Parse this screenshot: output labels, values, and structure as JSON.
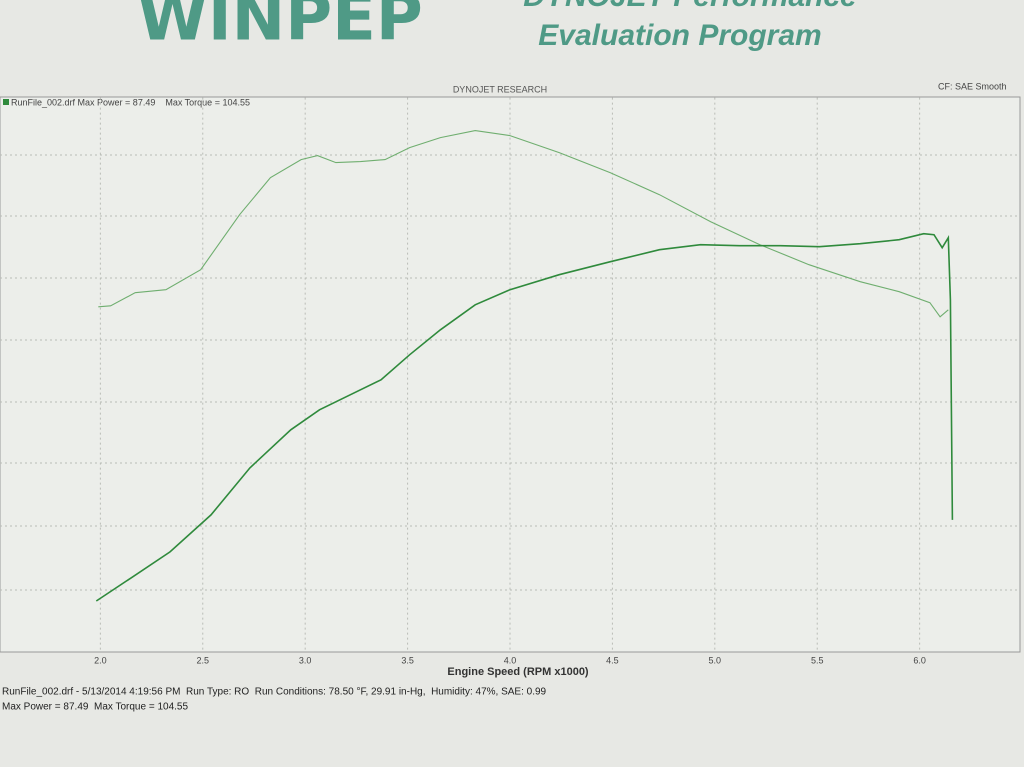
{
  "logo": "WINPEP",
  "program_heading": "DYNOJET Performance",
  "program_subtitle": "Evaluation Program",
  "chart_data": {
    "type": "line",
    "title": "DYNOJET RESEARCH",
    "corner_note": "CF: SAE Smooth",
    "legend_text": "RunFile_002.drf Max Power = 87.49    Max Torque = 104.55",
    "x_label": "Engine Speed (RPM x1000)",
    "xlim": [
      1.51,
      6.49
    ],
    "ylim": [
      0,
      110.4
    ],
    "xticks": [
      {
        "value": 2,
        "label": "2.0"
      },
      2.5,
      {
        "value": 3,
        "label": "3.0"
      },
      3.5,
      {
        "value": 4,
        "label": "4.0"
      },
      4.5,
      {
        "value": 5,
        "label": "5.0"
      },
      5.5,
      {
        "value": 6,
        "label": "6.0"
      }
    ],
    "grid": true,
    "series": [
      {
        "color": "#6fae6f",
        "x": [
          1.99,
          2.05,
          2.17,
          2.32,
          2.49,
          2.68,
          2.83,
          2.98,
          3.06,
          3.15,
          3.27,
          3.39,
          3.51,
          3.66,
          3.83,
          4.0,
          4.24,
          4.49,
          4.73,
          4.98,
          5.22,
          5.46,
          5.71,
          5.9,
          6.05,
          6.1,
          6.14
        ],
        "values": [
          68.6,
          68.8,
          71.4,
          72,
          76,
          87,
          94.4,
          98,
          98.8,
          97.4,
          97.6,
          98,
          100.4,
          102.4,
          103.8,
          102.8,
          99.4,
          95.4,
          91,
          85.6,
          81,
          77,
          73.6,
          71.6,
          69.4,
          66.6,
          68
        ]
      },
      {
        "color": "#2f8a3c",
        "x": [
          1.98,
          2.15,
          2.34,
          2.54,
          2.73,
          2.93,
          3.07,
          3.22,
          3.37,
          3.51,
          3.66,
          3.83,
          4.0,
          4.24,
          4.49,
          4.73,
          4.93,
          5.12,
          5.32,
          5.51,
          5.71,
          5.9,
          6.02,
          6.07,
          6.11,
          6.14,
          6.15,
          6.16
        ],
        "values": [
          9.8,
          14.4,
          19.6,
          27,
          36.4,
          44,
          48,
          51,
          54,
          59,
          64,
          69,
          72,
          75,
          77.6,
          80,
          81,
          80.8,
          80.8,
          80.6,
          81.2,
          82,
          83.2,
          83,
          80.4,
          82.4,
          70,
          26
        ]
      }
    ]
  },
  "footer": {
    "line1": "RunFile_002.drf - 5/13/2014 4:19:56 PM  Run Type: RO  Run Conditions: 78.50 °F, 29.91 in-Hg,  Humidity: 47%, SAE: 0.99",
    "line2": "Max Power = 87.49  Max Torque = 104.55"
  }
}
